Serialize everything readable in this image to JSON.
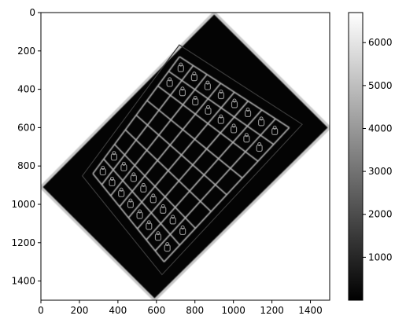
{
  "chart_data": [
    {
      "type": "heatmap",
      "title": "",
      "xlabel": "",
      "ylabel": "",
      "xlim": [
        0,
        1500
      ],
      "ylim": [
        1500,
        0
      ],
      "x_ticks": [
        0,
        200,
        400,
        600,
        800,
        1000,
        1200,
        1400
      ],
      "y_ticks": [
        0,
        200,
        400,
        600,
        800,
        1000,
        1200,
        1400
      ],
      "colormap": "gray",
      "content": "edge-magnitude image of a chessboard rotated about 45 degrees inside a bright rotated frame",
      "border_corners": [
        [
          900,
          0
        ],
        [
          1500,
          600
        ],
        [
          590,
          1500
        ],
        [
          0,
          910
        ]
      ],
      "board_corners": [
        [
          720,
          230
        ],
        [
          1290,
          600
        ],
        [
          640,
          1300
        ],
        [
          270,
          840
        ]
      ],
      "grid_cells": 8
    },
    {
      "type": "colorbar",
      "range": [
        0,
        6700
      ],
      "ticks": [
        1000,
        2000,
        3000,
        4000,
        5000,
        6000
      ]
    }
  ],
  "colors": {
    "low": "#000000",
    "high": "#ffffff",
    "axes": "#000000"
  }
}
